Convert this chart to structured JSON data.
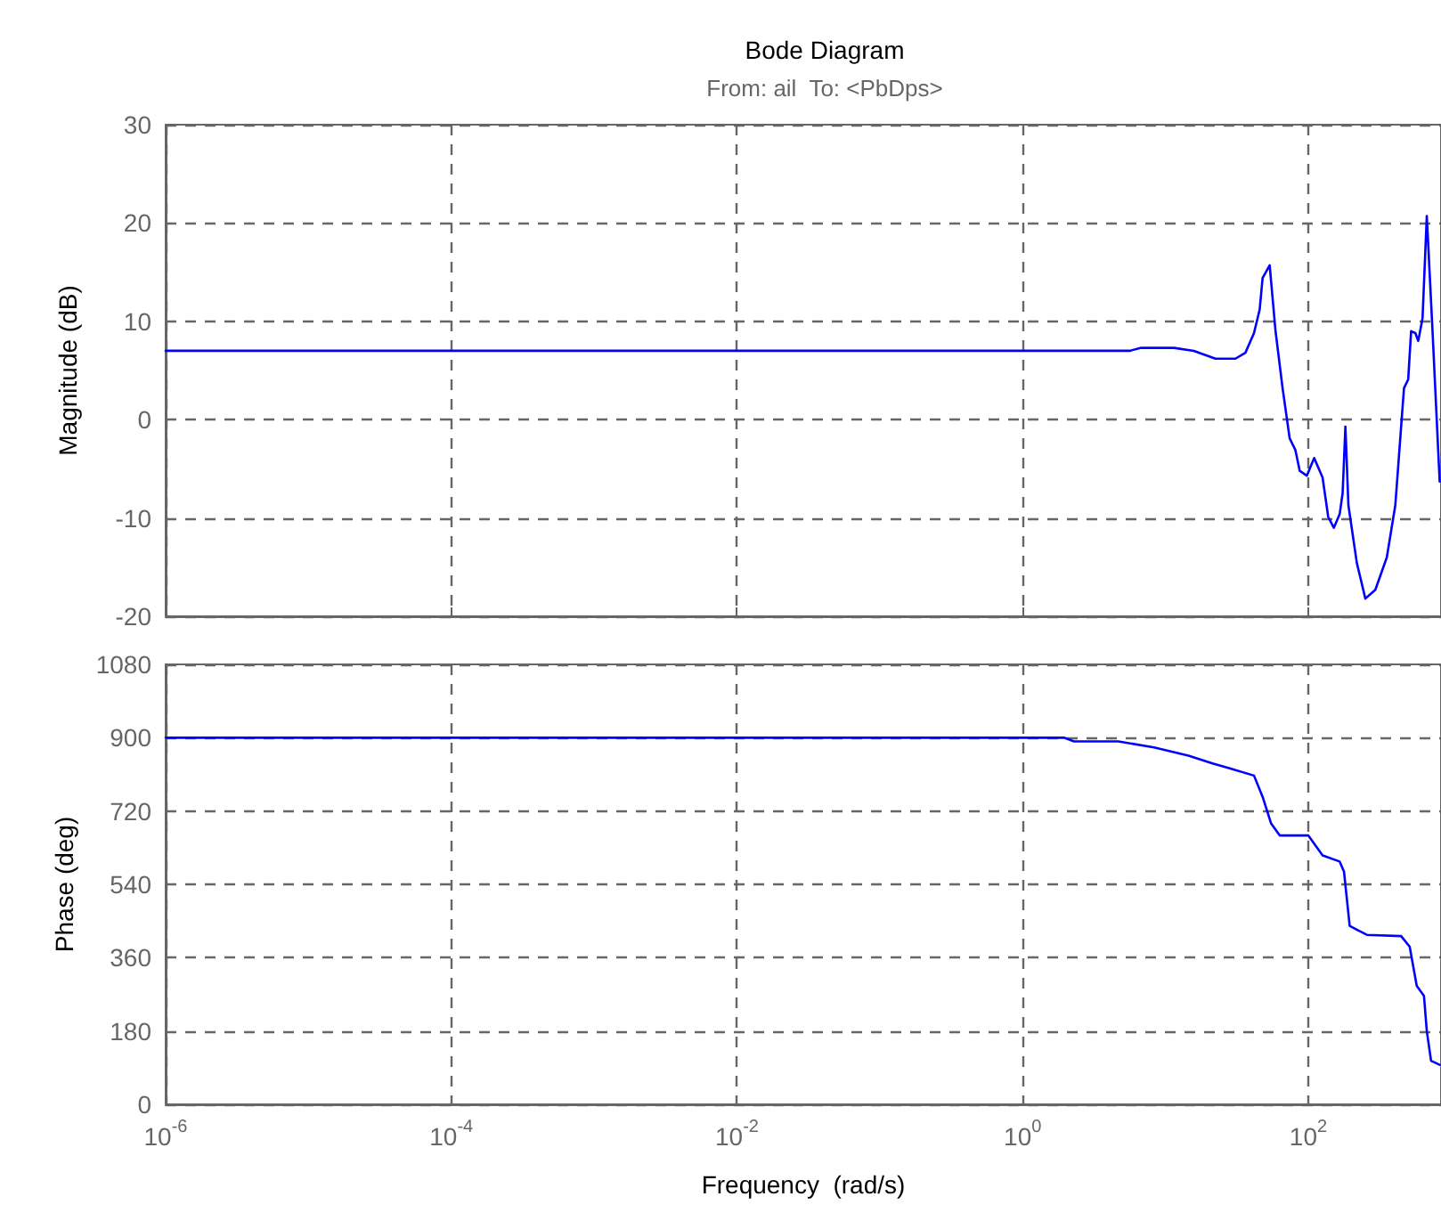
{
  "chart_data": [
    {
      "type": "line",
      "title": "Bode Diagram",
      "subtitle": "From: ail  To: <PbDps>",
      "ylabel": "Magnitude (dB)",
      "log": "x",
      "grid": true,
      "marker": "none",
      "line_style": "solid",
      "tick_labels": "y",
      "x": [
        1e-06,
        5.62,
        6.76,
        11.5,
        15.8,
        22.4,
        30.9,
        36.3,
        41.7,
        45.7,
        47.9,
        53.7,
        58.9,
        66.1,
        74.1,
        81.3,
        87.1,
        97.7,
        110,
        126,
        138,
        151,
        166,
        174,
        182,
        191,
        219,
        251,
        295,
        355,
        407,
        468,
        501,
        525,
        562,
        589,
        631,
        676,
        741,
        832
      ],
      "series": [
        {
          "color": "#0000ff",
          "values": [
            7,
            7,
            7.3,
            7.3,
            7,
            6.2,
            6.2,
            6.8,
            8.8,
            11.2,
            14.4,
            15.7,
            9.1,
            3.2,
            -1.9,
            -3.1,
            -5.2,
            -5.7,
            -3.9,
            -5.9,
            -9.9,
            -11,
            -9.6,
            -7.5,
            -0.7,
            -8.7,
            -14.6,
            -18.2,
            -17.3,
            -14,
            -8.7,
            3.2,
            4.1,
            9,
            8.8,
            8,
            10.3,
            20.7,
            9.1,
            -6.3
          ]
        }
      ],
      "xlim": [
        1e-06,
        850
      ],
      "xticks": [
        {
          "value": 1e-06,
          "label": null
        },
        {
          "value": 0.0001,
          "label": null
        },
        {
          "value": 0.01,
          "label": null
        },
        {
          "value": 1,
          "label": null
        },
        {
          "value": 100,
          "label": null
        }
      ],
      "ylim": [
        -20,
        30
      ],
      "yticks": [
        -20,
        -10,
        0,
        10,
        20,
        30
      ]
    },
    {
      "type": "line",
      "xlabel": "Frequency  (rad/s)",
      "ylabel": "Phase (deg)",
      "log": "x",
      "grid": true,
      "marker": "none",
      "line_style": "solid",
      "x": [
        1e-06,
        1.95,
        2.29,
        4.68,
        8.32,
        14.5,
        21.4,
        28.2,
        41.7,
        47.9,
        55,
        63.1,
        100,
        126,
        166,
        178,
        195,
        257,
        447,
        513,
        575,
        646,
        676,
        724,
        832
      ],
      "series": [
        {
          "color": "#0000ff",
          "values": [
            900,
            900,
            891,
            891,
            876,
            856,
            837,
            825,
            807,
            755,
            689,
            660,
            660,
            611,
            596,
            571,
            438,
            416,
            413,
            387,
            291,
            266,
            180,
            107,
            97
          ]
        }
      ],
      "xlim": [
        1e-06,
        850
      ],
      "xticks": [
        {
          "value": 1e-06,
          "label": "10$^{-6}$"
        },
        {
          "value": 0.0001,
          "label": "10$^{-4}$"
        },
        {
          "value": 0.01,
          "label": "10$^{-2}$"
        },
        {
          "value": 1,
          "label": "10$^{0}$"
        },
        {
          "value": 100,
          "label": "10$^{2}$"
        }
      ],
      "ylim": [
        0,
        1080
      ],
      "yticks": [
        0,
        180,
        360,
        540,
        720,
        900,
        1080
      ]
    }
  ]
}
